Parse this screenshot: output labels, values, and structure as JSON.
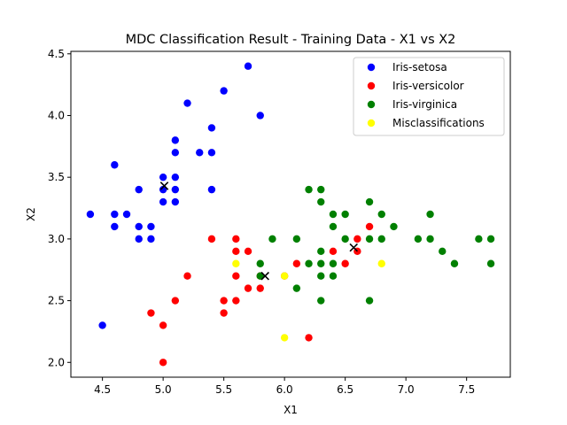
{
  "chart_data": {
    "type": "scatter",
    "title": "MDC Classification Result - Training Data - X1 vs X2",
    "xlabel": "X1",
    "ylabel": "X2",
    "xlim": [
      4.24,
      7.86
    ],
    "ylim": [
      1.88,
      4.52
    ],
    "xticks": [
      "4.5",
      "5.0",
      "5.5",
      "6.0",
      "6.5",
      "7.0",
      "7.5"
    ],
    "yticks": [
      "2.0",
      "2.5",
      "3.0",
      "3.5",
      "4.0",
      "4.5"
    ],
    "grid": false,
    "legend_position": "upper right",
    "series": [
      {
        "name": "Iris-setosa",
        "color": "#0000ff",
        "marker": "circle",
        "points": [
          [
            4.4,
            3.2
          ],
          [
            4.5,
            2.3
          ],
          [
            4.6,
            3.6
          ],
          [
            4.6,
            3.2
          ],
          [
            4.6,
            3.1
          ],
          [
            4.7,
            3.2
          ],
          [
            4.8,
            3.4
          ],
          [
            4.8,
            3.1
          ],
          [
            4.8,
            3.0
          ],
          [
            4.9,
            3.1
          ],
          [
            4.9,
            3.0
          ],
          [
            5.0,
            3.5
          ],
          [
            5.0,
            3.4
          ],
          [
            5.0,
            3.3
          ],
          [
            5.1,
            3.8
          ],
          [
            5.1,
            3.7
          ],
          [
            5.1,
            3.5
          ],
          [
            5.1,
            3.4
          ],
          [
            5.1,
            3.3
          ],
          [
            5.2,
            4.1
          ],
          [
            5.3,
            3.7
          ],
          [
            5.4,
            3.9
          ],
          [
            5.4,
            3.7
          ],
          [
            5.4,
            3.4
          ],
          [
            5.5,
            4.2
          ],
          [
            5.7,
            4.4
          ],
          [
            5.8,
            4.0
          ]
        ]
      },
      {
        "name": "Iris-versicolor",
        "color": "#ff0000",
        "marker": "circle",
        "points": [
          [
            4.9,
            2.4
          ],
          [
            5.0,
            2.3
          ],
          [
            5.0,
            2.0
          ],
          [
            5.1,
            2.5
          ],
          [
            5.2,
            2.7
          ],
          [
            5.4,
            3.0
          ],
          [
            5.5,
            2.5
          ],
          [
            5.5,
            2.4
          ],
          [
            5.6,
            3.0
          ],
          [
            5.6,
            2.9
          ],
          [
            5.6,
            2.7
          ],
          [
            5.6,
            2.5
          ],
          [
            5.7,
            2.9
          ],
          [
            5.7,
            2.6
          ],
          [
            5.8,
            2.7
          ],
          [
            5.8,
            2.6
          ],
          [
            6.0,
            2.7
          ],
          [
            6.1,
            2.8
          ],
          [
            6.2,
            2.2
          ],
          [
            6.4,
            2.9
          ],
          [
            6.5,
            2.8
          ],
          [
            6.6,
            3.0
          ],
          [
            6.6,
            2.9
          ],
          [
            6.7,
            3.1
          ]
        ]
      },
      {
        "name": "Iris-virginica",
        "color": "#008000",
        "marker": "circle",
        "points": [
          [
            5.8,
            2.8
          ],
          [
            5.8,
            2.7
          ],
          [
            5.9,
            3.0
          ],
          [
            6.1,
            3.0
          ],
          [
            6.1,
            2.6
          ],
          [
            6.2,
            3.4
          ],
          [
            6.2,
            2.8
          ],
          [
            6.3,
            3.4
          ],
          [
            6.3,
            3.3
          ],
          [
            6.3,
            2.9
          ],
          [
            6.3,
            2.8
          ],
          [
            6.3,
            2.7
          ],
          [
            6.3,
            2.5
          ],
          [
            6.4,
            3.2
          ],
          [
            6.4,
            3.1
          ],
          [
            6.4,
            2.8
          ],
          [
            6.4,
            2.7
          ],
          [
            6.5,
            3.2
          ],
          [
            6.5,
            3.0
          ],
          [
            6.7,
            3.3
          ],
          [
            6.7,
            3.0
          ],
          [
            6.7,
            2.5
          ],
          [
            6.8,
            3.2
          ],
          [
            6.8,
            3.0
          ],
          [
            6.9,
            3.1
          ],
          [
            7.1,
            3.0
          ],
          [
            7.2,
            3.2
          ],
          [
            7.2,
            3.0
          ],
          [
            7.3,
            2.9
          ],
          [
            7.4,
            2.8
          ],
          [
            7.6,
            3.0
          ],
          [
            7.7,
            3.0
          ],
          [
            7.7,
            2.8
          ]
        ]
      },
      {
        "name": "Misclassifications",
        "color": "#ffff00",
        "marker": "circle",
        "points": [
          [
            5.6,
            2.8
          ],
          [
            6.0,
            2.7
          ],
          [
            6.0,
            2.2
          ],
          [
            6.8,
            2.8
          ]
        ]
      }
    ],
    "centroids": {
      "color": "#000000",
      "marker": "x",
      "points": [
        [
          5.01,
          3.43
        ],
        [
          5.84,
          2.7
        ],
        [
          6.57,
          2.93
        ]
      ]
    }
  }
}
